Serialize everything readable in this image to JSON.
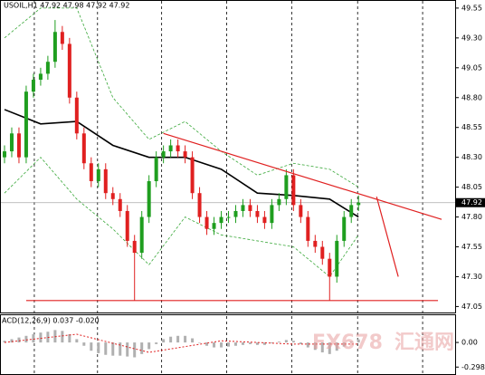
{
  "chart_data": [
    {
      "type": "candlestick",
      "title": "USOIL,H1 47.92 47.98 47.92 47.92",
      "xlim": [
        -0.5,
        62.375
      ],
      "ylim": [
        47.0,
        49.61
      ],
      "yticks": [
        49.55,
        {
          "value": 49.3,
          "label": "49.30"
        },
        49.05,
        {
          "value": 48.8,
          "label": "48.80"
        },
        48.55,
        {
          "value": 48.3,
          "label": "48.30"
        },
        48.05,
        {
          "value": 47.8,
          "label": "47.80"
        },
        47.55,
        {
          "value": 47.3,
          "label": "47.30"
        },
        47.05
      ],
      "xgrid": [
        4.125,
        12.875,
        21.75,
        30.75,
        39.75,
        48.875,
        57.875
      ],
      "up_color": "#1f9e1f",
      "down_color": "#e02020",
      "open": [
        48.3,
        48.35,
        48.5,
        48.3,
        48.85,
        48.95,
        49.0,
        49.1,
        49.35,
        49.25,
        48.8,
        48.5,
        48.25,
        48.1,
        48.2,
        48.0,
        47.95,
        47.85,
        47.6,
        47.5,
        47.8,
        48.1,
        48.3,
        48.35,
        48.4,
        48.35,
        48.3,
        48.0,
        47.8,
        47.7,
        47.75,
        47.8,
        47.8,
        47.85,
        47.9,
        47.85,
        47.8,
        47.75,
        47.9,
        47.95,
        48.15,
        47.9,
        47.8,
        47.6,
        47.55,
        47.45,
        47.3,
        47.6,
        47.8,
        47.9
      ],
      "high": [
        48.4,
        48.55,
        48.55,
        48.9,
        49.0,
        49.05,
        49.15,
        49.45,
        49.4,
        49.3,
        48.85,
        48.55,
        48.3,
        48.25,
        48.25,
        48.05,
        48.0,
        47.9,
        47.65,
        47.85,
        48.15,
        48.35,
        48.4,
        48.45,
        48.45,
        48.4,
        48.35,
        48.05,
        47.85,
        47.8,
        47.85,
        47.85,
        47.9,
        47.95,
        47.95,
        47.9,
        47.85,
        47.95,
        48.0,
        48.2,
        48.2,
        47.95,
        47.85,
        47.65,
        47.6,
        47.5,
        47.65,
        47.85,
        47.95,
        47.98
      ],
      "low": [
        48.25,
        48.3,
        48.25,
        48.25,
        48.8,
        48.9,
        48.95,
        49.05,
        49.2,
        48.75,
        48.45,
        48.2,
        48.05,
        48.05,
        47.95,
        47.9,
        47.8,
        47.55,
        47.1,
        47.45,
        47.75,
        48.05,
        48.25,
        48.3,
        48.3,
        48.25,
        47.95,
        47.75,
        47.65,
        47.65,
        47.7,
        47.75,
        47.75,
        47.8,
        47.8,
        47.75,
        47.7,
        47.7,
        47.85,
        47.9,
        47.85,
        47.75,
        47.55,
        47.5,
        47.4,
        47.1,
        47.25,
        47.55,
        47.75,
        47.85
      ],
      "close": [
        48.35,
        48.5,
        48.3,
        48.85,
        48.95,
        49.0,
        49.1,
        49.35,
        49.25,
        48.8,
        48.5,
        48.25,
        48.1,
        48.2,
        48.0,
        47.95,
        47.85,
        47.6,
        47.5,
        47.8,
        48.1,
        48.3,
        48.35,
        48.4,
        48.35,
        48.3,
        48.0,
        47.8,
        47.7,
        47.75,
        47.8,
        47.8,
        47.85,
        47.9,
        47.85,
        47.8,
        47.75,
        47.9,
        47.95,
        48.15,
        47.9,
        47.8,
        47.6,
        47.55,
        47.45,
        47.3,
        47.6,
        47.8,
        47.9,
        47.92
      ],
      "overlays": [
        {
          "color": "#000000",
          "style": "solid",
          "x": [
            0,
            5,
            10,
            15,
            20,
            25,
            30,
            35,
            40,
            45,
            49
          ],
          "values": [
            48.7,
            48.58,
            48.6,
            48.4,
            48.3,
            48.3,
            48.2,
            48.0,
            47.98,
            47.95,
            47.8
          ]
        },
        {
          "color": "#3aa83a",
          "style": "dashed",
          "x": [
            0,
            5,
            10,
            15,
            20,
            25,
            30,
            35,
            40,
            45,
            49
          ],
          "values": [
            49.3,
            49.55,
            49.55,
            48.8,
            48.45,
            48.6,
            48.35,
            48.15,
            48.25,
            48.2,
            48.05
          ]
        },
        {
          "color": "#3aa83a",
          "style": "dashed",
          "x": [
            0,
            5,
            10,
            15,
            20,
            25,
            30,
            35,
            40,
            45,
            49
          ],
          "values": [
            48.0,
            48.3,
            47.95,
            47.7,
            47.4,
            47.8,
            47.65,
            47.6,
            47.55,
            47.3,
            47.65
          ]
        }
      ],
      "trendlines": [
        {
          "color": "#e02020",
          "points": [
            [
              22,
              48.5
            ],
            [
              60.5,
              47.78
            ]
          ]
        },
        {
          "color": "#e02020",
          "points": [
            [
              51.5,
              47.97
            ],
            [
              54.5,
              47.3
            ]
          ]
        },
        {
          "color": "#e02020",
          "points": [
            [
              3,
              47.1
            ],
            [
              60,
              47.1
            ]
          ]
        }
      ],
      "current_price": 47.92,
      "watermark": [
        "FX678",
        "汇通网"
      ]
    },
    {
      "type": "macd",
      "title": "ACD(12,26,9) 0.037 -0.020",
      "xlim": [
        -0.5,
        62.375
      ],
      "ylim": [
        -0.383,
        0.33
      ],
      "yticks": [
        {
          "value": 0,
          "label": "0.00"
        },
        -0.298
      ],
      "histogram_color": "#b0b0b0",
      "values": [
        0.02,
        0.04,
        0.06,
        0.08,
        0.1,
        0.12,
        0.13,
        0.15,
        0.14,
        0.1,
        0.04,
        -0.04,
        -0.1,
        -0.13,
        -0.15,
        -0.16,
        -0.16,
        -0.17,
        -0.18,
        -0.14,
        -0.08,
        -0.02,
        0.04,
        0.07,
        0.08,
        0.08,
        0.05,
        0.0,
        -0.04,
        -0.06,
        -0.06,
        -0.05,
        -0.04,
        -0.03,
        -0.02,
        -0.03,
        -0.03,
        -0.01,
        0.01,
        0.03,
        0.02,
        -0.02,
        -0.06,
        -0.09,
        -0.12,
        -0.14,
        -0.1,
        -0.05,
        0.01,
        0.037
      ],
      "signal": {
        "color": "#e02020",
        "x": [
          0,
          10,
          20,
          30,
          40,
          49
        ],
        "values": [
          0.0,
          0.1,
          -0.12,
          0.02,
          -0.02,
          -0.02
        ]
      }
    }
  ]
}
